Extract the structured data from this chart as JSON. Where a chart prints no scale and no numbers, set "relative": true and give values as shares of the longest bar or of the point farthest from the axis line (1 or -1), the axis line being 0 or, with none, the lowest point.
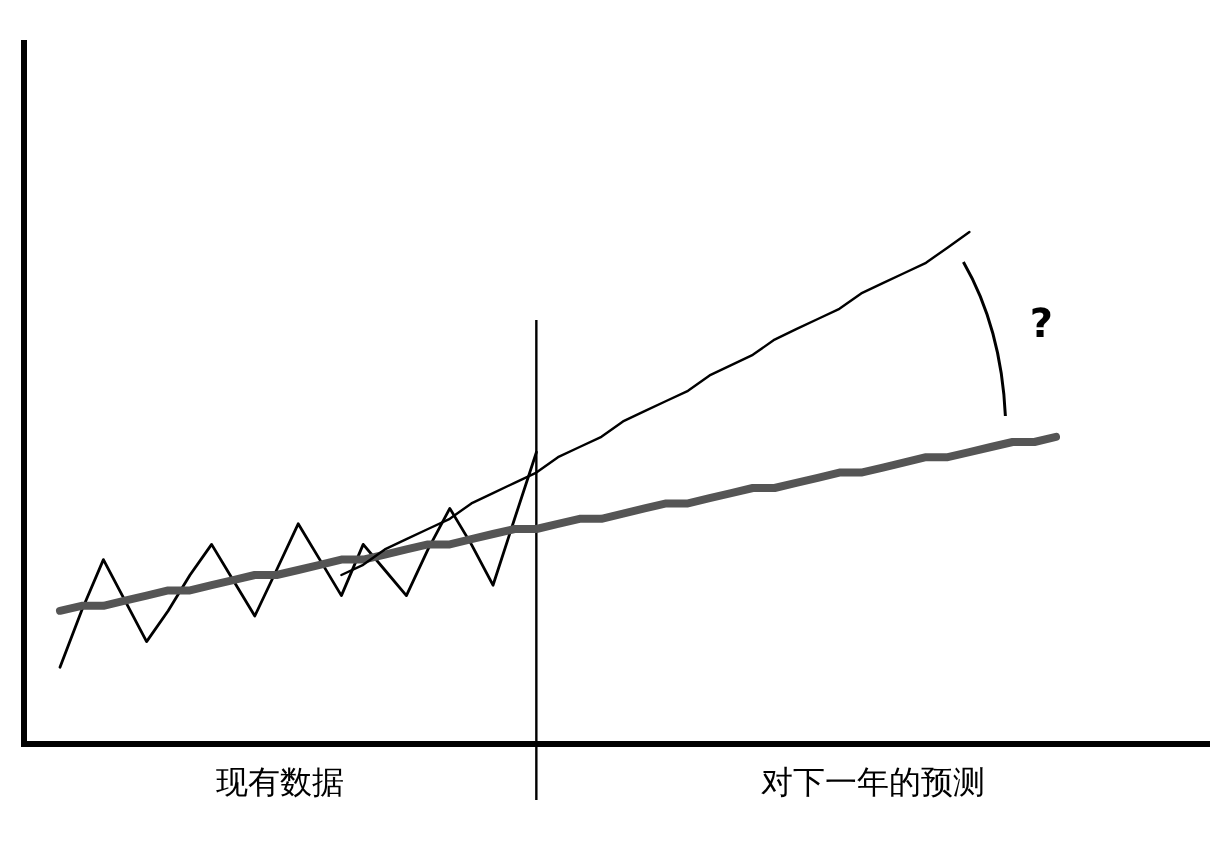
{
  "chart_data": {
    "type": "line",
    "relative": true,
    "categories": [
      null,
      null,
      null,
      null,
      null,
      null,
      null,
      null,
      null,
      null,
      null,
      null,
      null,
      null,
      null,
      null,
      null,
      null,
      null,
      null,
      null,
      null,
      null,
      null,
      null,
      null,
      null,
      null,
      null,
      null,
      null,
      null,
      null,
      null,
      null,
      null,
      null,
      null,
      null,
      null,
      null,
      null,
      null,
      null,
      null,
      null,
      null
    ],
    "series": [
      {
        "color": "#000000",
        "values": [
          0.15,
          0.26,
          0.36,
          0.28,
          0.2,
          0.26,
          0.33,
          0.39,
          0.32,
          0.25,
          0.34,
          0.43,
          0.36,
          0.29,
          0.39,
          0.34,
          0.29,
          0.38,
          0.46,
          0.39,
          0.31,
          0.44,
          0.57,
          null,
          null,
          null,
          null,
          null,
          null,
          null,
          null,
          null,
          null,
          null,
          null,
          null,
          null,
          null,
          null,
          null,
          null,
          null,
          null,
          null,
          null,
          null,
          null
        ]
      },
      {
        "color": "#555555",
        "values": [
          0.26,
          0.27,
          0.27,
          0.28,
          0.29,
          0.3,
          0.3,
          0.31,
          0.32,
          0.33,
          0.33,
          0.34,
          0.35,
          0.36,
          0.36,
          0.37,
          0.38,
          0.39,
          0.39,
          0.4,
          0.41,
          0.42,
          0.42,
          0.43,
          0.44,
          0.44,
          0.45,
          0.46,
          0.47,
          0.47,
          0.48,
          0.49,
          0.5,
          0.5,
          0.51,
          0.52,
          0.53,
          0.53,
          0.54,
          0.55,
          0.56,
          0.56,
          0.57,
          0.58,
          0.59,
          0.59,
          0.6
        ]
      },
      {
        "color": "#000000",
        "values": [
          null,
          null,
          null,
          null,
          null,
          null,
          null,
          null,
          null,
          null,
          null,
          null,
          null,
          0.33,
          0.35,
          0.38,
          0.4,
          0.42,
          0.44,
          0.47,
          0.49,
          0.51,
          0.53,
          0.56,
          0.58,
          0.6,
          0.63,
          0.65,
          0.67,
          0.69,
          0.72,
          0.74,
          0.76,
          0.79,
          0.81,
          0.83,
          0.85,
          0.88,
          0.9,
          0.92,
          0.94,
          0.97,
          1.0,
          null,
          null,
          null,
          null
        ]
      }
    ],
    "ref_lines": [
      {
        "axis": "x",
        "color": "#000000"
      }
    ],
    "annotations": [
      "现有数据",
      "对下一年的预测",
      "?"
    ]
  }
}
